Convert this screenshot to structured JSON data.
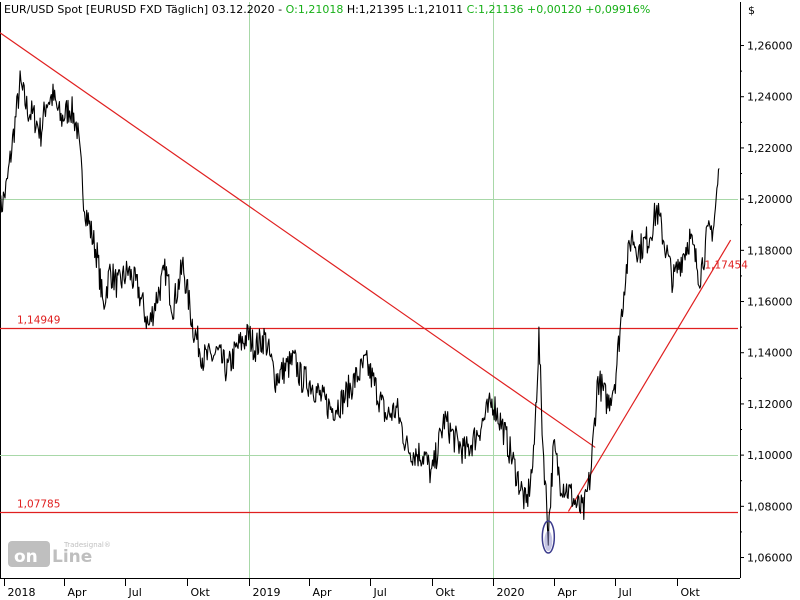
{
  "header": {
    "instrument": "EUR/USD Spot [EURUSD FXD  Täglich] 03.12.2020",
    "open": "O:1,21018",
    "high": "H:1,21395",
    "low": "L:1,21011",
    "close": "C:1,21136",
    "change": "+0,00120",
    "change_pct": "+0,09916%"
  },
  "currency_label": "$",
  "logo": {
    "brand": "Tradesignal®",
    "word": "online"
  },
  "colors": {
    "price": "#000000",
    "levels": "#e02020",
    "grid": "#a8d8a8",
    "header_green": "#18b018",
    "logo": "#bfbfbf",
    "dip_marker": "#3a3a8c"
  },
  "chart_data": {
    "type": "line",
    "title": "EUR/USD Spot [EURUSD FXD  Täglich] 03.12.2020",
    "x_ticks": [
      "2018",
      "Apr",
      "Jul",
      "Okt",
      "2019",
      "Apr",
      "Jul",
      "Okt",
      "2020",
      "Apr",
      "Jul",
      "Okt"
    ],
    "y_ticks": [
      "1,26000",
      "1,24000",
      "1,22000",
      "1,20000",
      "1,18000",
      "1,16000",
      "1,14000",
      "1,12000",
      "1,10000",
      "1,08000",
      "1,06000"
    ],
    "ylim": [
      1.052,
      1.277
    ],
    "xlim": [
      "2017-12-26",
      "2020-12-31"
    ],
    "grid_v": [
      "2019-01-01",
      "2020-01-01"
    ],
    "grid_h": [
      1.2,
      1.1
    ],
    "series": [
      {
        "x": [
          "2017-12-26",
          "2018-01-05",
          "2018-01-15",
          "2018-01-25",
          "2018-02-05",
          "2018-02-15",
          "2018-02-25",
          "2018-03-05",
          "2018-03-15",
          "2018-03-27",
          "2018-04-10",
          "2018-04-20",
          "2018-05-01",
          "2018-05-10",
          "2018-05-20",
          "2018-05-29",
          "2018-06-08",
          "2018-06-20",
          "2018-07-05",
          "2018-07-20",
          "2018-08-05",
          "2018-08-15",
          "2018-08-30",
          "2018-09-10",
          "2018-09-25",
          "2018-10-10",
          "2018-10-25",
          "2018-11-05",
          "2018-11-15",
          "2018-11-30",
          "2018-12-15",
          "2019-01-01",
          "2019-01-10",
          "2019-01-25",
          "2019-02-10",
          "2019-02-25",
          "2019-03-10",
          "2019-03-20",
          "2019-04-05",
          "2019-04-20",
          "2019-05-05",
          "2019-05-20",
          "2019-06-05",
          "2019-06-25",
          "2019-07-10",
          "2019-07-25",
          "2019-08-10",
          "2019-08-25",
          "2019-09-05",
          "2019-09-20",
          "2019-10-01",
          "2019-10-20",
          "2019-11-05",
          "2019-11-20",
          "2019-12-05",
          "2019-12-31",
          "2020-01-15",
          "2020-02-01",
          "2020-02-19",
          "2020-03-01",
          "2020-03-09",
          "2020-03-15",
          "2020-03-23",
          "2020-03-31",
          "2020-04-10",
          "2020-04-25",
          "2020-05-05",
          "2020-05-15",
          "2020-05-25",
          "2020-06-05",
          "2020-06-20",
          "2020-07-01",
          "2020-07-15",
          "2020-07-25",
          "2020-08-05",
          "2020-08-20",
          "2020-09-01",
          "2020-09-15",
          "2020-09-25",
          "2020-10-05",
          "2020-10-20",
          "2020-11-04",
          "2020-11-15",
          "2020-11-25",
          "2020-12-03"
        ],
        "y": [
          1.195,
          1.205,
          1.225,
          1.245,
          1.235,
          1.232,
          1.226,
          1.238,
          1.24,
          1.231,
          1.236,
          1.228,
          1.198,
          1.188,
          1.178,
          1.158,
          1.172,
          1.166,
          1.172,
          1.165,
          1.15,
          1.16,
          1.172,
          1.158,
          1.174,
          1.15,
          1.138,
          1.138,
          1.14,
          1.133,
          1.142,
          1.147,
          1.142,
          1.146,
          1.13,
          1.134,
          1.137,
          1.13,
          1.128,
          1.122,
          1.118,
          1.121,
          1.128,
          1.136,
          1.126,
          1.115,
          1.118,
          1.103,
          1.101,
          1.1,
          1.092,
          1.114,
          1.106,
          1.101,
          1.107,
          1.121,
          1.111,
          1.096,
          1.08,
          1.098,
          1.146,
          1.104,
          1.07,
          1.103,
          1.09,
          1.085,
          1.08,
          1.078,
          1.092,
          1.13,
          1.12,
          1.13,
          1.168,
          1.186,
          1.18,
          1.185,
          1.196,
          1.18,
          1.168,
          1.175,
          1.185,
          1.17,
          1.185,
          1.19,
          1.212
        ]
      }
    ],
    "horizontal_levels": [
      {
        "value": 1.14949,
        "label": "1,14949"
      },
      {
        "value": 1.07785,
        "label": "1,07785"
      }
    ],
    "trendlines": [
      {
        "from": {
          "x": "2017-12-26",
          "y": 1.265
        },
        "to": {
          "x": "2020-06-01",
          "y": 1.103
        }
      },
      {
        "from": {
          "x": "2020-04-22",
          "y": 1.078
        },
        "to": {
          "x": "2020-12-20",
          "y": 1.184
        }
      }
    ],
    "trend_label": {
      "value": 1.17454,
      "label": "1,17454",
      "x": "2020-11-08"
    },
    "dip_marker": {
      "x": "2020-03-23",
      "y": 1.068
    }
  }
}
